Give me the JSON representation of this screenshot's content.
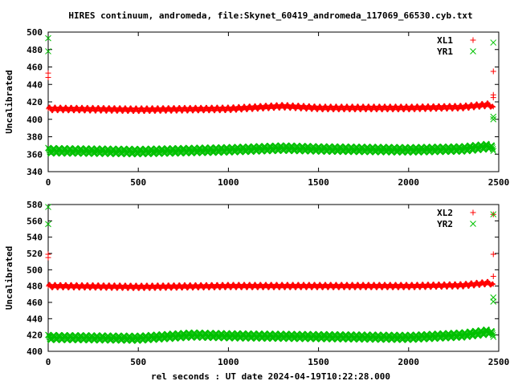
{
  "title": "HIRES continuum, andromeda, file:Skynet_60419_andromeda_117069_66530.cyb.txt",
  "xlabel": "rel seconds : UT date 2024-04-19T10:22:28.000",
  "chart_data": [
    {
      "type": "scatter",
      "ylabel": "Uncalibrated",
      "xlim": [
        0,
        2500
      ],
      "ylim": [
        340,
        500
      ],
      "x_ticks": [
        0,
        500,
        1000,
        1500,
        2000,
        2500
      ],
      "y_ticks": [
        340,
        360,
        380,
        400,
        420,
        440,
        460,
        480,
        500
      ],
      "legend_position": "top-right",
      "series": [
        {
          "name": "XL1",
          "marker": "+",
          "color": "#ff0000",
          "baseline": [
            [
              0,
              412
            ],
            [
              500,
              411
            ],
            [
              1000,
              412
            ],
            [
              1300,
              415
            ],
            [
              1500,
              413
            ],
            [
              2000,
              413
            ],
            [
              2300,
              414
            ],
            [
              2450,
              417
            ],
            [
              2470,
              412
            ]
          ],
          "outliers": [
            [
              0,
              453
            ],
            [
              0,
              448
            ],
            [
              2470,
              455
            ],
            [
              2470,
              428
            ],
            [
              2470,
              425
            ]
          ]
        },
        {
          "name": "YR1",
          "marker": "x",
          "color": "#00c000",
          "baseline": [
            [
              0,
              364
            ],
            [
              500,
              363
            ],
            [
              1000,
              365
            ],
            [
              1300,
              367
            ],
            [
              1500,
              366
            ],
            [
              2000,
              365
            ],
            [
              2300,
              366
            ],
            [
              2450,
              369
            ],
            [
              2470,
              365
            ]
          ],
          "outliers": [
            [
              0,
              493
            ],
            [
              0,
              478
            ],
            [
              2470,
              488
            ],
            [
              2470,
              403
            ],
            [
              2470,
              400
            ]
          ]
        }
      ]
    },
    {
      "type": "scatter",
      "ylabel": "Uncalibrated",
      "xlim": [
        0,
        2500
      ],
      "ylim": [
        400,
        580
      ],
      "x_ticks": [
        0,
        500,
        1000,
        1500,
        2000,
        2500
      ],
      "y_ticks": [
        400,
        420,
        440,
        460,
        480,
        500,
        520,
        540,
        560,
        580
      ],
      "legend_position": "top-right",
      "series": [
        {
          "name": "XL2",
          "marker": "+",
          "color": "#ff0000",
          "baseline": [
            [
              0,
              480
            ],
            [
              500,
              479
            ],
            [
              1000,
              480
            ],
            [
              1500,
              480
            ],
            [
              2000,
              480
            ],
            [
              2300,
              481
            ],
            [
              2450,
              484
            ],
            [
              2470,
              480
            ]
          ],
          "outliers": [
            [
              0,
              519
            ],
            [
              0,
              515
            ],
            [
              2470,
              568
            ],
            [
              2470,
              519
            ],
            [
              2470,
              492
            ]
          ]
        },
        {
          "name": "YR2",
          "marker": "x",
          "color": "#00c000",
          "baseline": [
            [
              0,
              417
            ],
            [
              500,
              416
            ],
            [
              800,
              420
            ],
            [
              1000,
              419
            ],
            [
              1500,
              418
            ],
            [
              2000,
              417
            ],
            [
              2300,
              420
            ],
            [
              2450,
              424
            ],
            [
              2470,
              419
            ]
          ],
          "outliers": [
            [
              0,
              577
            ],
            [
              0,
              556
            ],
            [
              2470,
              568
            ],
            [
              2470,
              466
            ],
            [
              2470,
              461
            ]
          ]
        }
      ]
    }
  ]
}
